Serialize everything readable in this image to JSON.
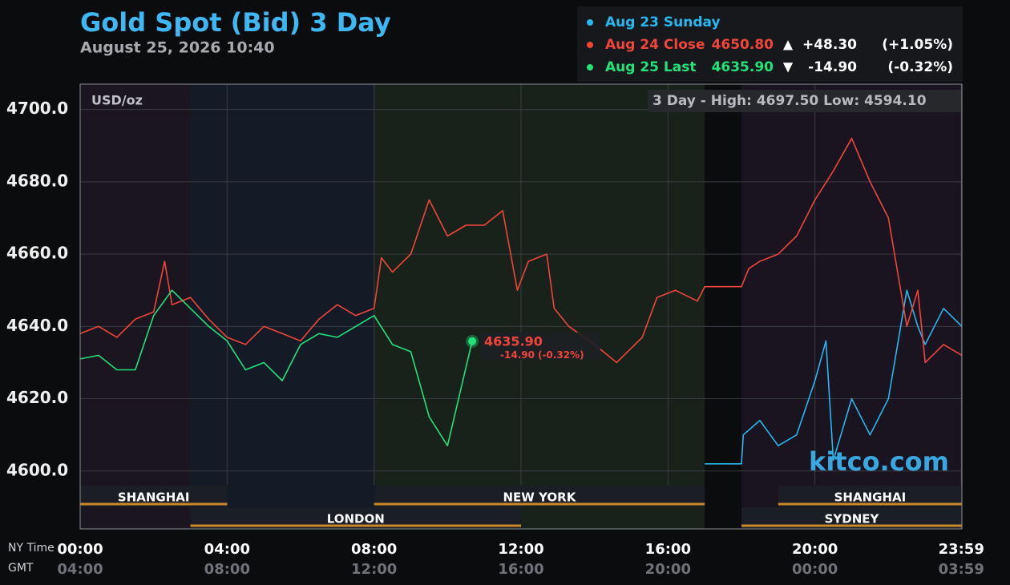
{
  "chart_data": {
    "type": "line",
    "title": "Gold Spot (Bid) 3 Day",
    "subtitle": "August 25, 2026 10:40",
    "unit_label": "USD/oz",
    "range_label": "3 Day - High: 4697.50  Low: 4594.10",
    "watermark": "kitco.com",
    "x_axis_label": "NY Time",
    "x2_axis_label": "GMT",
    "xlim": [
      0,
      24
    ],
    "xticks": [
      {
        "value": 0,
        "label": "00:00"
      },
      {
        "value": 4,
        "label": "04:00"
      },
      {
        "value": 8,
        "label": "08:00"
      },
      {
        "value": 12,
        "label": "12:00"
      },
      {
        "value": 16,
        "label": "16:00"
      },
      {
        "value": 20,
        "label": "20:00"
      },
      {
        "value": 23.983,
        "label": "23:59"
      }
    ],
    "x2tick_labels": [
      "04:00",
      "08:00",
      "12:00",
      "16:00",
      "20:00",
      "00:00",
      "03:59"
    ],
    "ylim": [
      4584,
      4707
    ],
    "yticks": [
      {
        "value": 4600,
        "label": "4600.0"
      },
      {
        "value": 4620,
        "label": "4620.0"
      },
      {
        "value": 4640,
        "label": "4640.0"
      },
      {
        "value": 4660,
        "label": "4660.0"
      },
      {
        "value": 4680,
        "label": "4680.0"
      },
      {
        "value": 4700,
        "label": "4700.0"
      }
    ],
    "grid": true,
    "background_bands": [
      {
        "start": 0,
        "end": 3,
        "color": "#1b1520"
      },
      {
        "start": 3,
        "end": 8,
        "color": "#141a26"
      },
      {
        "start": 8,
        "end": 17,
        "color": "#18221a"
      },
      {
        "start": 17,
        "end": 18,
        "color": "#0b0c0e"
      },
      {
        "start": 18,
        "end": 24,
        "color": "#1a1420"
      }
    ],
    "sessions": [
      {
        "name": "SHANGHAI",
        "start": 0,
        "end": 4,
        "row": 0
      },
      {
        "name": "NEW YORK",
        "start": 8,
        "end": 17,
        "row": 0
      },
      {
        "name": "SHANGHAI",
        "start": 19,
        "end": 24,
        "row": 0
      },
      {
        "name": "LONDON",
        "start": 3,
        "end": 12,
        "row": 1
      },
      {
        "name": "SYDNEY",
        "start": 18,
        "end": 24,
        "row": 1
      }
    ],
    "series": [
      {
        "name": "Aug 23 Sunday",
        "color": "#27b8f0",
        "x": [
          17,
          18,
          18.05,
          18.5,
          19,
          19.5,
          20,
          20.3,
          20.5,
          21,
          21.5,
          22,
          22.5,
          22.8,
          23,
          23.5,
          24
        ],
        "values": [
          4602,
          4602,
          4610,
          4614,
          4607,
          4610,
          4625,
          4636,
          4603,
          4620,
          4610,
          4620,
          4650,
          4640,
          4635,
          4645,
          4640
        ],
        "legend_value": "",
        "legend_arrow": "",
        "legend_change": "",
        "legend_pct": ""
      },
      {
        "name": "Aug 24 Close",
        "color": "#f0453a",
        "x": [
          0,
          0.5,
          1,
          1.5,
          2,
          2.3,
          2.5,
          3,
          3.5,
          4,
          4.5,
          5,
          5.5,
          6,
          6.5,
          7,
          7.5,
          8,
          8.2,
          8.5,
          9,
          9.5,
          10,
          10.5,
          11,
          11.5,
          11.9,
          12.2,
          12.7,
          12.9,
          13.3,
          14,
          14.6,
          15.3,
          15.7,
          16.2,
          16.8,
          17,
          18,
          18.2,
          18.5,
          19,
          19.5,
          20,
          20.5,
          21,
          21.5,
          22,
          22.5,
          22.8,
          23,
          23.5,
          24
        ],
        "values": [
          4638,
          4640,
          4637,
          4642,
          4644,
          4658,
          4646,
          4648,
          4642,
          4637,
          4635,
          4640,
          4638,
          4636,
          4642,
          4646,
          4643,
          4645,
          4659,
          4655,
          4660,
          4675,
          4665,
          4668,
          4668,
          4672,
          4650,
          4658,
          4660,
          4645,
          4640,
          4635,
          4630,
          4637,
          4648,
          4650,
          4647,
          4651,
          4651,
          4656,
          4658,
          4660,
          4665,
          4675,
          4683,
          4692,
          4680,
          4670,
          4640,
          4650,
          4630,
          4635,
          4632
        ],
        "legend_value": "4650.80",
        "legend_arrow": "▲",
        "legend_change": "+48.30",
        "legend_pct": "(+1.05%)"
      },
      {
        "name": "Aug 25 Last",
        "color": "#22e27a",
        "x": [
          0,
          0.5,
          1,
          1.5,
          2,
          2.5,
          3,
          3.5,
          4,
          4.5,
          5,
          5.5,
          6,
          6.5,
          7,
          7.5,
          8,
          8.5,
          9,
          9.5,
          10,
          10.3,
          10.67
        ],
        "values": [
          4631,
          4632,
          4628,
          4628,
          4643,
          4650,
          4645,
          4640,
          4636,
          4628,
          4630,
          4625,
          4635,
          4638,
          4637,
          4640,
          4643,
          4635,
          4633,
          4615,
          4607,
          4620,
          4635.9
        ],
        "legend_value": "4635.90",
        "legend_arrow": "▼",
        "legend_change": "-14.90",
        "legend_pct": "(-0.32%)"
      }
    ]
  }
}
